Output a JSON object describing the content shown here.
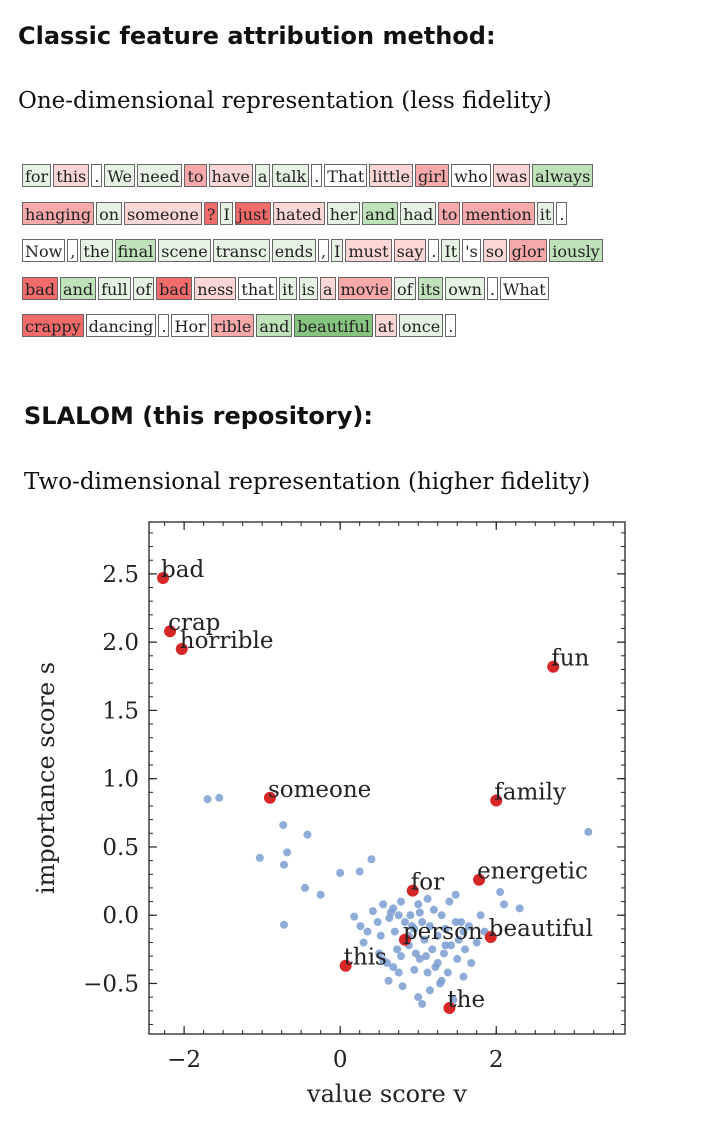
{
  "heading1": "Classic feature attribution method:",
  "subtitle1": "One-dimensional representation (less fidelity)",
  "heading2": "SLALOM (this repository):",
  "subtitle2": "Two-dimensional representation (higher fidelity)",
  "colors": {
    "neg_strong": "#f26b6b",
    "neg_mid": "#f7a9a9",
    "neg_light": "#fbd6d6",
    "neutral": "#ffffff",
    "pos_light": "#e6f3e4",
    "pos_mid": "#c0e2bb",
    "pos_strong": "#86c57f",
    "scatter_blue": "#7b9dd1",
    "scatter_red": "#d62728"
  },
  "token_lines": [
    [
      [
        "for",
        "pos_light"
      ],
      [
        "this",
        "neg_light"
      ],
      [
        ".",
        "neutral"
      ],
      [
        "We",
        "pos_light"
      ],
      [
        "need",
        "pos_light"
      ],
      [
        "to",
        "neg_mid"
      ],
      [
        "have",
        "neg_light"
      ],
      [
        "a",
        "pos_light"
      ],
      [
        "talk",
        "pos_light"
      ],
      [
        ".",
        "neutral"
      ],
      [
        "That",
        "neutral"
      ],
      [
        "little",
        "neg_light"
      ],
      [
        "girl",
        "neg_mid"
      ],
      [
        "who",
        "neutral"
      ],
      [
        "was",
        "neg_light"
      ],
      [
        "always",
        "pos_mid"
      ]
    ],
    [
      [
        "hanging",
        "neg_mid"
      ],
      [
        "on",
        "pos_light"
      ],
      [
        "someone",
        "neg_light"
      ],
      [
        "?",
        "neg_strong"
      ],
      [
        "I",
        "pos_light"
      ],
      [
        "just",
        "neg_strong"
      ],
      [
        "hated",
        "neg_light"
      ],
      [
        "her",
        "pos_light"
      ],
      [
        "and",
        "pos_mid"
      ],
      [
        "had",
        "pos_light"
      ],
      [
        "to",
        "neg_mid"
      ],
      [
        "mention",
        "neg_mid"
      ],
      [
        "it",
        "pos_light"
      ],
      [
        ".",
        "neutral"
      ]
    ],
    [
      [
        "Now",
        "neutral"
      ],
      [
        ",",
        "neutral"
      ],
      [
        "the",
        "pos_light"
      ],
      [
        "final",
        "pos_mid"
      ],
      [
        "scene",
        "pos_light"
      ],
      [
        "transc",
        "pos_light"
      ],
      [
        "ends",
        "pos_light"
      ],
      [
        ",",
        "neutral"
      ],
      [
        "I",
        "pos_light"
      ],
      [
        "must",
        "neg_light"
      ],
      [
        "say",
        "neg_light"
      ],
      [
        ".",
        "neutral"
      ],
      [
        "It",
        "pos_light"
      ],
      [
        "'s",
        "neutral"
      ],
      [
        "so",
        "neg_light"
      ],
      [
        "glor",
        "neg_mid"
      ],
      [
        "iously",
        "pos_mid"
      ]
    ],
    [
      [
        "bad",
        "neg_strong"
      ],
      [
        "and",
        "pos_mid"
      ],
      [
        "full",
        "pos_light"
      ],
      [
        "of",
        "pos_light"
      ],
      [
        "bad",
        "neg_strong"
      ],
      [
        "ness",
        "neg_light"
      ],
      [
        "that",
        "neutral"
      ],
      [
        "it",
        "pos_light"
      ],
      [
        "is",
        "pos_light"
      ],
      [
        "a",
        "neg_light"
      ],
      [
        "movie",
        "neg_mid"
      ],
      [
        "of",
        "pos_light"
      ],
      [
        "its",
        "pos_mid"
      ],
      [
        "own",
        "pos_light"
      ],
      [
        ".",
        "neutral"
      ],
      [
        "What",
        "neutral"
      ]
    ],
    [
      [
        "crappy",
        "neg_strong"
      ],
      [
        "dancing",
        "neutral"
      ],
      [
        ".",
        "neutral"
      ],
      [
        "Hor",
        "neutral"
      ],
      [
        "rible",
        "neg_mid"
      ],
      [
        "and",
        "pos_mid"
      ],
      [
        "beautiful",
        "pos_strong"
      ],
      [
        "at",
        "neg_light"
      ],
      [
        "once",
        "pos_light"
      ],
      [
        ".",
        "neutral"
      ]
    ]
  ],
  "chart_data": {
    "type": "scatter",
    "xlabel": "value score v",
    "ylabel": "importance score s",
    "xlim": [
      -2.45,
      3.65
    ],
    "ylim": [
      -0.87,
      2.88
    ],
    "xticks": [
      -2,
      0,
      2
    ],
    "xtick_labels": [
      "−2",
      "0",
      "2"
    ],
    "yticks": [
      -0.5,
      0.0,
      0.5,
      1.0,
      1.5,
      2.0,
      2.5
    ],
    "ytick_labels": [
      "−0.5",
      "0.0",
      "0.5",
      "1.0",
      "1.5",
      "2.0",
      "2.5"
    ],
    "grid": false,
    "labeled_points": [
      {
        "label": "bad",
        "x": -2.27,
        "y": 2.47
      },
      {
        "label": "crap",
        "x": -2.18,
        "y": 2.08
      },
      {
        "label": "horrible",
        "x": -2.03,
        "y": 1.95
      },
      {
        "label": "fun",
        "x": 2.73,
        "y": 1.82
      },
      {
        "label": "someone",
        "x": -0.9,
        "y": 0.86
      },
      {
        "label": "family",
        "x": 2.0,
        "y": 0.84
      },
      {
        "label": "energetic",
        "x": 1.78,
        "y": 0.26
      },
      {
        "label": "for",
        "x": 0.93,
        "y": 0.18
      },
      {
        "label": "beautiful",
        "x": 1.93,
        "y": -0.16
      },
      {
        "label": "person",
        "x": 0.83,
        "y": -0.18
      },
      {
        "label": "this",
        "x": 0.07,
        "y": -0.37
      },
      {
        "label": "the",
        "x": 1.4,
        "y": -0.68
      }
    ],
    "background_points": [
      [
        -1.7,
        0.85
      ],
      [
        -1.55,
        0.86
      ],
      [
        -0.73,
        0.66
      ],
      [
        -0.68,
        0.46
      ],
      [
        -0.72,
        0.37
      ],
      [
        -0.42,
        0.59
      ],
      [
        -1.03,
        0.42
      ],
      [
        -0.45,
        0.2
      ],
      [
        -0.25,
        0.15
      ],
      [
        -0.72,
        -0.07
      ],
      [
        0.0,
        0.31
      ],
      [
        0.25,
        0.32
      ],
      [
        0.4,
        0.41
      ],
      [
        0.18,
        -0.01
      ],
      [
        0.26,
        -0.08
      ],
      [
        0.35,
        -0.12
      ],
      [
        0.42,
        0.03
      ],
      [
        0.52,
        -0.15
      ],
      [
        0.55,
        0.08
      ],
      [
        0.63,
        -0.02
      ],
      [
        0.68,
        0.05
      ],
      [
        0.7,
        -0.12
      ],
      [
        0.73,
        -0.25
      ],
      [
        0.75,
        0.0
      ],
      [
        0.78,
        0.1
      ],
      [
        0.83,
        -0.05
      ],
      [
        0.88,
        -0.22
      ],
      [
        0.9,
        0.0
      ],
      [
        0.95,
        -0.1
      ],
      [
        0.97,
        -0.28
      ],
      [
        1.0,
        0.08
      ],
      [
        1.02,
        -0.32
      ],
      [
        1.05,
        -0.05
      ],
      [
        1.08,
        -0.18
      ],
      [
        1.1,
        -0.3
      ],
      [
        1.12,
        0.12
      ],
      [
        1.15,
        -0.08
      ],
      [
        1.18,
        -0.25
      ],
      [
        1.2,
        0.04
      ],
      [
        1.22,
        -0.38
      ],
      [
        1.25,
        -0.15
      ],
      [
        1.28,
        -0.5
      ],
      [
        1.3,
        0.0
      ],
      [
        1.33,
        -0.28
      ],
      [
        1.35,
        -0.1
      ],
      [
        1.38,
        -0.42
      ],
      [
        1.4,
        0.1
      ],
      [
        1.42,
        -0.22
      ],
      [
        1.45,
        -0.62
      ],
      [
        1.48,
        -0.05
      ],
      [
        1.5,
        -0.32
      ],
      [
        1.52,
        -0.18
      ],
      [
        1.55,
        -0.05
      ],
      [
        1.58,
        -0.45
      ],
      [
        1.6,
        -0.25
      ],
      [
        1.65,
        -0.08
      ],
      [
        1.68,
        -0.35
      ],
      [
        1.75,
        -0.2
      ],
      [
        1.8,
        0.0
      ],
      [
        1.85,
        -0.12
      ],
      [
        2.1,
        0.08
      ],
      [
        2.05,
        0.17
      ],
      [
        2.3,
        0.05
      ],
      [
        3.18,
        0.61
      ],
      [
        0.3,
        -0.2
      ],
      [
        0.5,
        -0.28
      ],
      [
        0.6,
        -0.35
      ],
      [
        0.62,
        -0.48
      ],
      [
        0.75,
        -0.42
      ],
      [
        0.8,
        -0.52
      ],
      [
        0.95,
        -0.4
      ],
      [
        1.0,
        -0.6
      ],
      [
        1.05,
        -0.65
      ],
      [
        0.78,
        -0.3
      ],
      [
        0.68,
        -0.38
      ],
      [
        0.55,
        -0.33
      ],
      [
        1.15,
        -0.55
      ],
      [
        1.3,
        -0.48
      ],
      [
        0.88,
        -0.15
      ],
      [
        1.12,
        -0.42
      ],
      [
        1.25,
        -0.35
      ],
      [
        0.92,
        -0.08
      ],
      [
        1.02,
        0.02
      ],
      [
        1.35,
        -0.22
      ],
      [
        1.48,
        0.15
      ],
      [
        0.65,
        0.02
      ],
      [
        0.48,
        -0.05
      ],
      [
        1.58,
        -0.12
      ]
    ]
  }
}
